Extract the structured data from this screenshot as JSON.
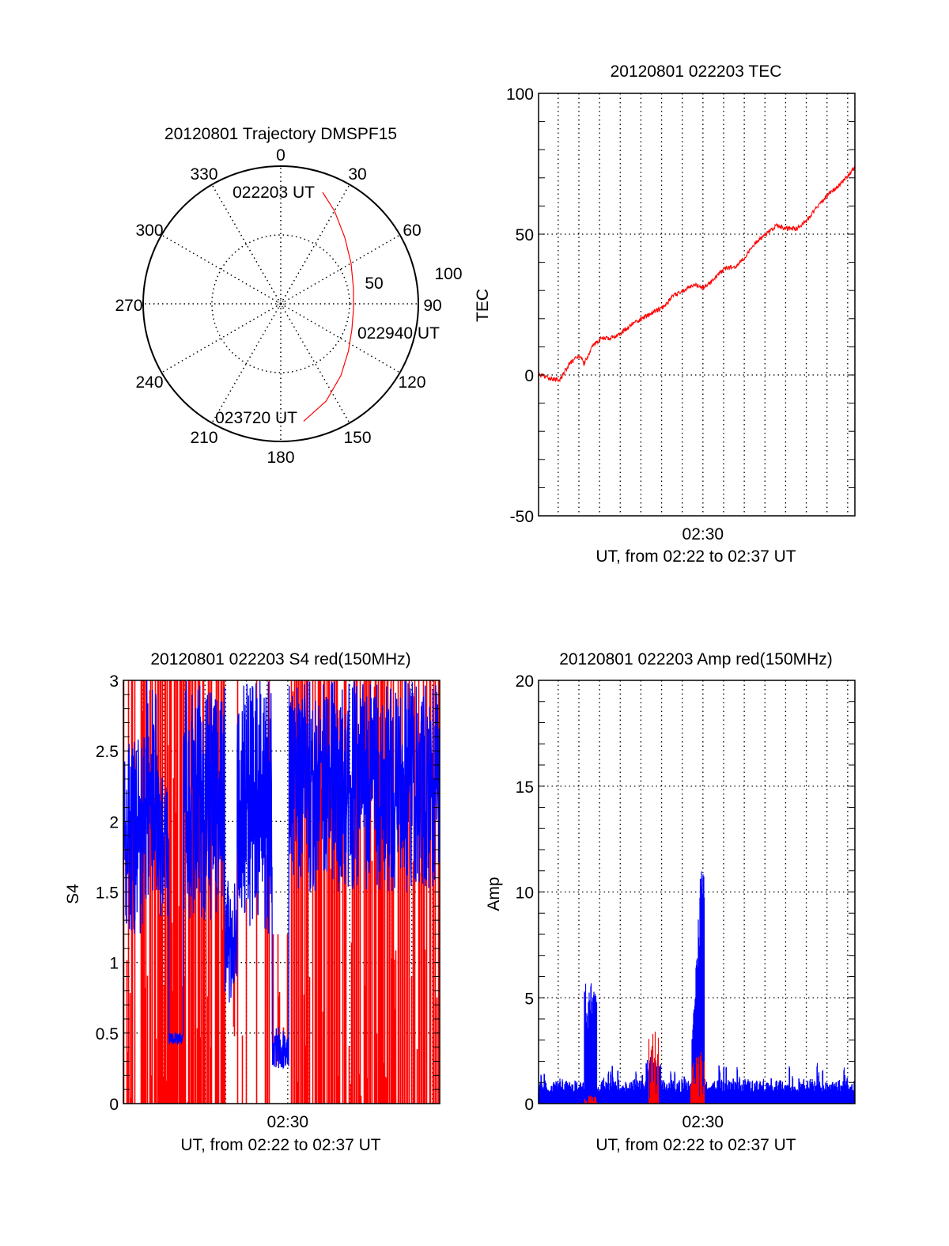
{
  "colors": {
    "red": "#ff0000",
    "blue": "#0000ff",
    "axis": "#000000"
  },
  "chart_data": [
    {
      "type": "polar",
      "title": "20120801 Trajectory DMSPF15",
      "angle_labels": [
        "0",
        "30",
        "60",
        "90",
        "120",
        "150",
        "180",
        "210",
        "240",
        "270",
        "300",
        "330"
      ],
      "radius_labels": [
        "50",
        "100"
      ],
      "radius_range": [
        0,
        100
      ],
      "annotations": [
        "022203 UT",
        "022940 UT",
        "023720 UT"
      ],
      "series": [
        {
          "name": "trajectory",
          "color": "#ff0000",
          "azimuth_deg": [
            20.6,
            30,
            44,
            60,
            78,
            94,
            110,
            125,
            140,
            155,
            169
          ],
          "radius": [
            86.5,
            78,
            67,
            59,
            54,
            53,
            55,
            60,
            68,
            78,
            87
          ]
        }
      ]
    },
    {
      "type": "line",
      "title": "20120801 022203 TEC",
      "xlabel": "UT, from 02:22 to 02:37 UT",
      "ylabel": "TEC",
      "x_tick_labels": [
        "02:30"
      ],
      "y_tick_labels": [
        "-50",
        "0",
        "50",
        "100"
      ],
      "ylim": [
        -50,
        100
      ],
      "x_unit": "minutes after 02:22:03",
      "xlim": [
        0,
        15.3
      ],
      "grid": true,
      "series": [
        {
          "name": "TEC",
          "color": "#ff0000",
          "x": [
            0,
            0.5,
            1.0,
            1.5,
            2.0,
            2.2,
            2.6,
            3.0,
            3.5,
            4.0,
            4.5,
            5.0,
            5.5,
            6.0,
            6.5,
            7.0,
            7.5,
            8.0,
            8.5,
            9.0,
            9.5,
            10.0,
            10.5,
            11.0,
            11.5,
            12.0,
            12.5,
            13.0,
            13.5,
            14.0,
            14.5,
            15.0,
            15.3
          ],
          "y": [
            0,
            -1,
            -2,
            4,
            7,
            4,
            10,
            13,
            13,
            15,
            18,
            20,
            22,
            24,
            28,
            30,
            32,
            31,
            34,
            38,
            38,
            42,
            47,
            50,
            53,
            52,
            52,
            55,
            60,
            64,
            67,
            71,
            74
          ]
        }
      ]
    },
    {
      "type": "line",
      "title": "20120801 022203 S4 red(150MHz)",
      "xlabel": "UT, from 02:22 to 02:37 UT",
      "ylabel": "S4",
      "x_tick_labels": [
        "02:30"
      ],
      "y_tick_labels": [
        "0",
        "0.5",
        "1",
        "1.5",
        "2",
        "2.5",
        "3"
      ],
      "ylim": [
        0,
        3
      ],
      "xlim": [
        0,
        15.3
      ],
      "grid": true,
      "series": [
        {
          "name": "S4 red",
          "color": "#ff0000",
          "envelope": [
            {
              "t": [
                0,
                1.7
              ],
              "low": 0,
              "high": 3,
              "density": 0.7
            },
            {
              "t": [
                1.7,
                2.9
              ],
              "low": 0,
              "high": 3,
              "density": 0.95
            },
            {
              "t": [
                2.9,
                4.9
              ],
              "low": 0,
              "high": 3,
              "density": 0.6
            },
            {
              "t": [
                4.9,
                5.5
              ],
              "low": 0.3,
              "high": 1.5,
              "density": 0.3
            },
            {
              "t": [
                5.5,
                7.2
              ],
              "low": 0,
              "high": 3,
              "density": 0.25
            },
            {
              "t": [
                7.2,
                8.0
              ],
              "low": 0.25,
              "high": 1.2,
              "density": 0.3
            },
            {
              "t": [
                8.0,
                15.3
              ],
              "low": 0,
              "high": 3,
              "density": 0.6
            }
          ]
        },
        {
          "name": "S4 blue",
          "color": "#0000ff",
          "envelope": [
            {
              "t": [
                0,
                1.0
              ],
              "low": 1.2,
              "high": 2.6
            },
            {
              "t": [
                1.0,
                1.7
              ],
              "low": 1.4,
              "high": 3.0
            },
            {
              "t": [
                1.7,
                2.2
              ],
              "low": 1.3,
              "high": 2.4
            },
            {
              "t": [
                2.2,
                2.9
              ],
              "low": 0.42,
              "high": 0.5
            },
            {
              "t": [
                2.9,
                4.9
              ],
              "low": 1.3,
              "high": 3.0
            },
            {
              "t": [
                4.9,
                5.5
              ],
              "low": 0.7,
              "high": 1.6
            },
            {
              "t": [
                5.5,
                7.2
              ],
              "low": 1.2,
              "high": 3.0
            },
            {
              "t": [
                7.2,
                8.0
              ],
              "low": 0.25,
              "high": 0.55
            },
            {
              "t": [
                8.0,
                15.3
              ],
              "low": 1.5,
              "high": 3.0
            }
          ]
        }
      ]
    },
    {
      "type": "bar",
      "title": "20120801 022203 Amp red(150MHz)",
      "xlabel": "UT, from 02:22 to 02:37 UT",
      "ylabel": "Amp",
      "x_tick_labels": [
        "02:30"
      ],
      "y_tick_labels": [
        "0",
        "5",
        "10",
        "15",
        "20"
      ],
      "ylim": [
        0,
        20
      ],
      "xlim": [
        0,
        15.3
      ],
      "grid": true,
      "series": [
        {
          "name": "Amp blue",
          "color": "#0000ff",
          "baseline_max": 1.5,
          "bursts": [
            {
              "t": [
                2.2,
                2.8
              ],
              "peak": 7.0,
              "typical": 6.0
            },
            {
              "t": [
                5.2,
                5.9
              ],
              "peak": 3.4,
              "typical": 2.5
            },
            {
              "t": [
                7.4,
                8.0
              ],
              "peak": 12.0,
              "typical": 9.0
            }
          ]
        },
        {
          "name": "Amp red",
          "color": "#ff0000",
          "bursts": [
            {
              "t": [
                2.2,
                2.8
              ],
              "peak": 0.4
            },
            {
              "t": [
                5.3,
                5.8
              ],
              "peak": 3.8
            },
            {
              "t": [
                7.3,
                8.0
              ],
              "peak": 2.5
            }
          ]
        }
      ]
    }
  ]
}
